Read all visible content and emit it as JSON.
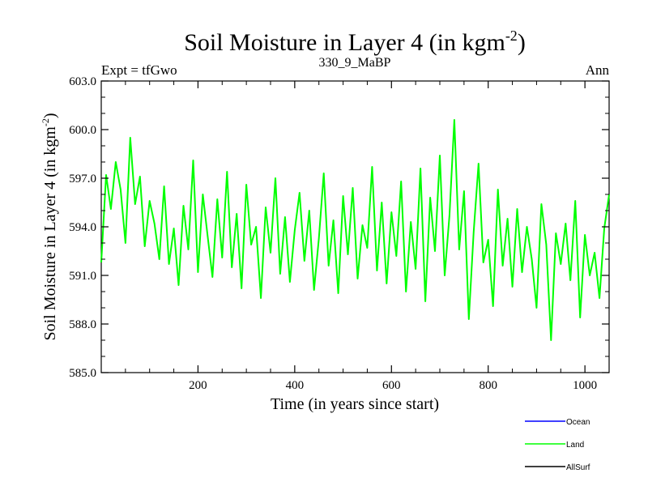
{
  "chart_data": {
    "type": "line",
    "title": "Soil Moisture in Layer 4 (in kgm",
    "title_sup": "-2",
    "title_end": ")",
    "subtitle_left": "Expt = tfGwo",
    "subtitle_center": "330_9_MaBP",
    "subtitle_right": "Ann",
    "xlabel": "Time (in years since start)",
    "ylabel": "Soil Moisture in Layer 4 (in kgm",
    "ylabel_sup": "-2",
    "ylabel_end": ")",
    "xlim": [
      0,
      1050
    ],
    "ylim": [
      585.0,
      603.0
    ],
    "xticks": [
      200,
      400,
      600,
      800,
      1000
    ],
    "xtick_labels": [
      "200",
      "400",
      "600",
      "800",
      "1000"
    ],
    "yticks": [
      585.0,
      588.0,
      591.0,
      594.0,
      597.0,
      600.0,
      603.0
    ],
    "ytick_labels": [
      "585.0",
      "588.0",
      "591.0",
      "594.0",
      "597.0",
      "600.0",
      "603.0"
    ],
    "legend": [
      {
        "name": "Ocean",
        "color": "#0000ff"
      },
      {
        "name": "Land",
        "color": "#00ff00"
      },
      {
        "name": "AllSurf",
        "color": "#000000"
      }
    ],
    "legend_placement": "bottom-right",
    "series": [
      {
        "name": "Land",
        "color": "#00ff00",
        "x": [
          0,
          10,
          20,
          30,
          40,
          50,
          60,
          70,
          80,
          90,
          100,
          110,
          120,
          130,
          140,
          150,
          160,
          170,
          180,
          190,
          200,
          210,
          220,
          230,
          240,
          250,
          260,
          270,
          280,
          290,
          300,
          310,
          320,
          330,
          340,
          350,
          360,
          370,
          380,
          390,
          400,
          410,
          420,
          430,
          440,
          450,
          460,
          470,
          480,
          490,
          500,
          510,
          520,
          530,
          540,
          550,
          560,
          570,
          580,
          590,
          600,
          610,
          620,
          630,
          640,
          650,
          660,
          670,
          680,
          690,
          700,
          710,
          720,
          730,
          740,
          750,
          760,
          770,
          780,
          790,
          800,
          810,
          820,
          830,
          840,
          850,
          860,
          870,
          880,
          890,
          900,
          910,
          920,
          930,
          940,
          950,
          960,
          970,
          980,
          990,
          1000,
          1010,
          1020,
          1030,
          1040,
          1050
        ],
        "values": [
          591.8,
          597.2,
          595.1,
          598.0,
          596.3,
          593.0,
          599.5,
          595.4,
          597.1,
          592.8,
          595.6,
          594.2,
          592.0,
          596.5,
          591.7,
          593.9,
          590.4,
          595.3,
          592.6,
          598.1,
          591.2,
          596.0,
          593.4,
          590.9,
          595.7,
          592.1,
          597.4,
          591.5,
          594.8,
          590.2,
          596.6,
          592.9,
          594.0,
          589.6,
          595.2,
          592.4,
          597.0,
          591.1,
          594.6,
          590.6,
          593.8,
          596.1,
          591.9,
          595.0,
          590.1,
          593.3,
          597.3,
          591.6,
          594.4,
          589.9,
          595.9,
          592.3,
          596.4,
          590.8,
          594.1,
          592.7,
          597.7,
          591.3,
          595.5,
          590.5,
          594.9,
          592.2,
          596.8,
          590.0,
          594.3,
          591.4,
          597.6,
          589.4,
          595.8,
          592.5,
          598.4,
          591.0,
          594.7,
          600.6,
          592.6,
          596.2,
          588.3,
          593.7,
          597.9,
          591.8,
          593.2,
          589.1,
          596.3,
          591.6,
          594.5,
          590.3,
          595.1,
          591.2,
          594.0,
          592.0,
          589.0,
          595.4,
          592.9,
          587.0,
          593.6,
          591.7,
          594.2,
          590.7,
          595.6,
          588.4,
          593.5,
          591.0,
          592.4,
          589.6,
          593.9,
          596.0
        ]
      }
    ]
  }
}
